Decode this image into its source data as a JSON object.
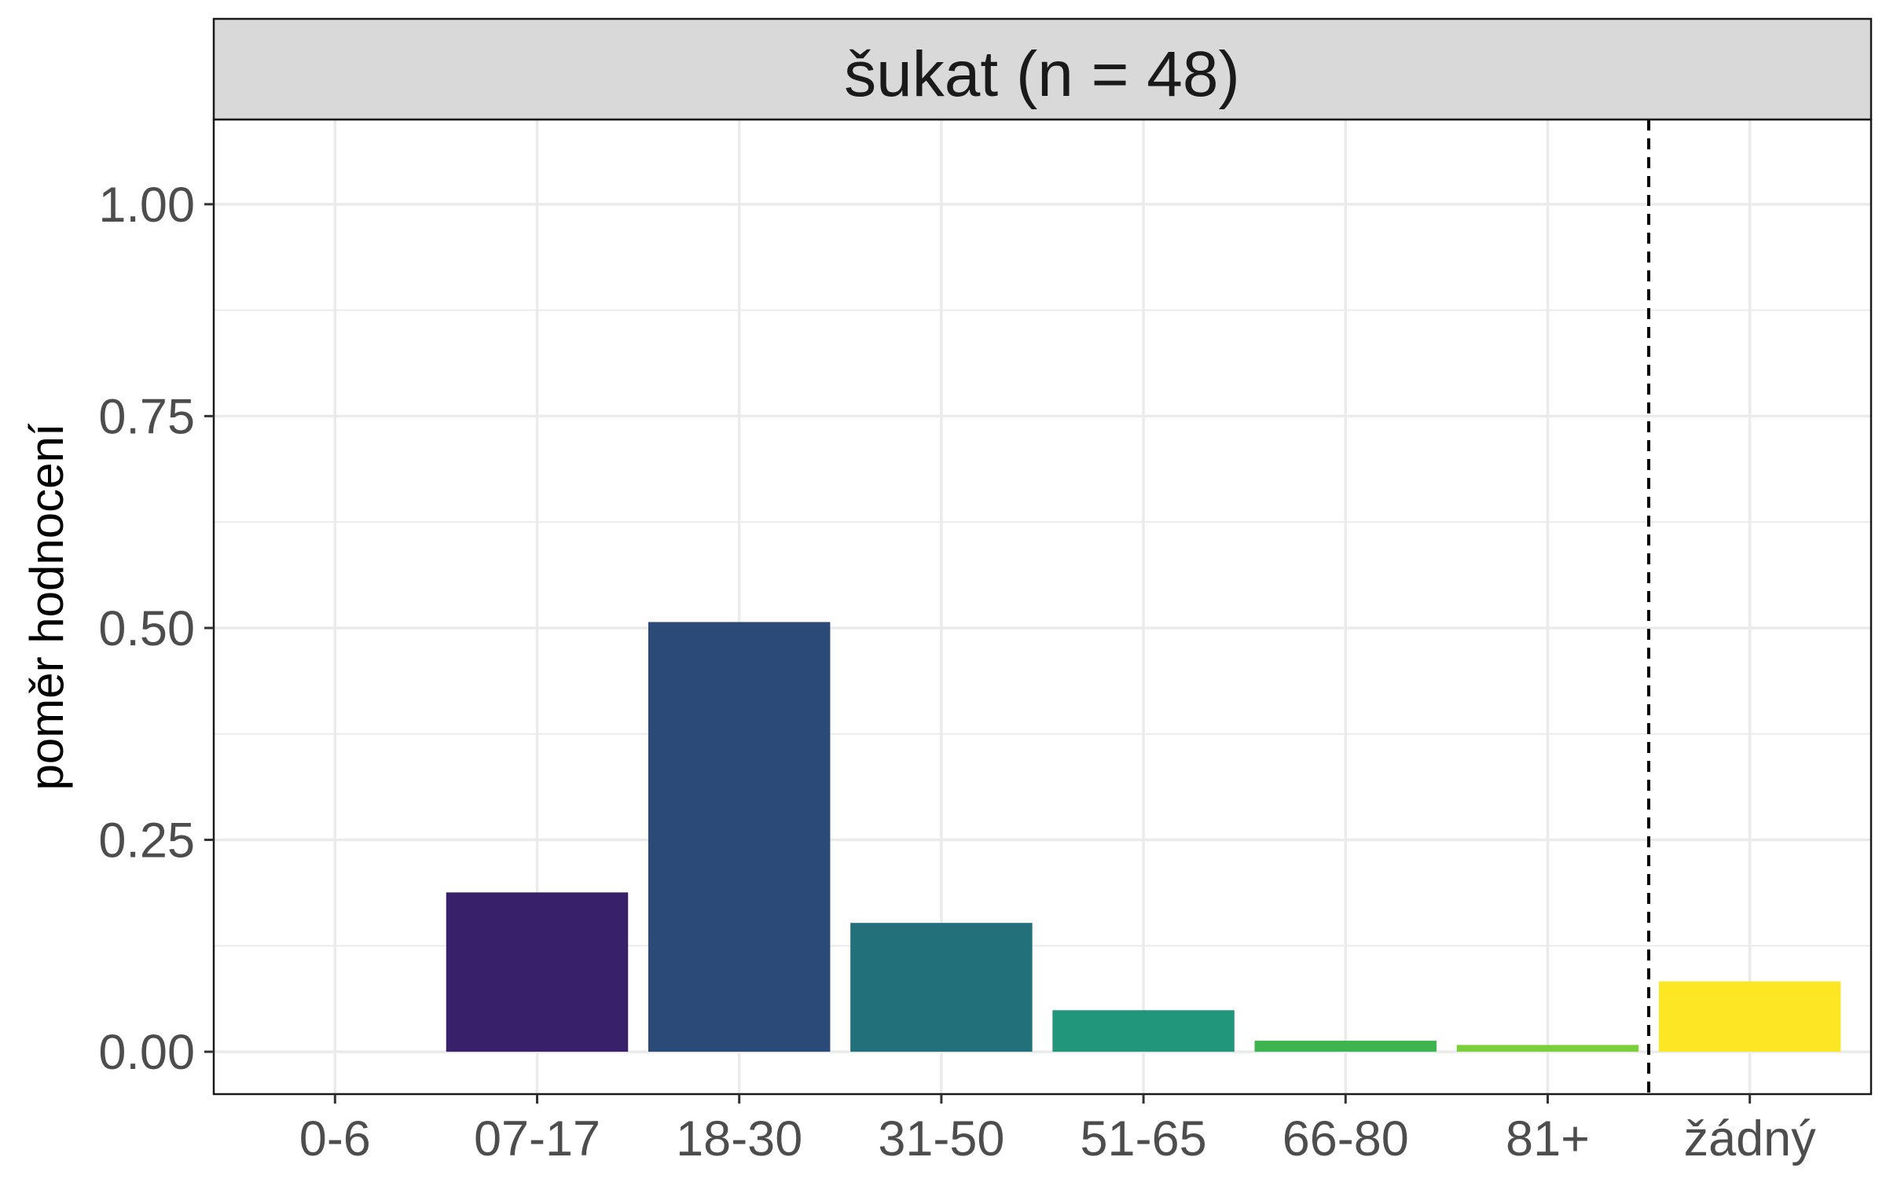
{
  "chart_data": {
    "type": "bar",
    "title": "šukat (n = 48)",
    "xlabel": "",
    "ylabel": "poměr hodnocení",
    "ylim": [
      -0.05,
      1.1
    ],
    "yticks": [
      "0.00",
      "0.25",
      "0.50",
      "0.75",
      "1.00"
    ],
    "ytick_values": [
      0,
      0.25,
      0.5,
      0.75,
      1.0
    ],
    "categories": [
      "0-6",
      "07-17",
      "18-30",
      "31-50",
      "51-65",
      "66-80",
      "81+",
      "žádný"
    ],
    "values": [
      0.0,
      0.188,
      0.507,
      0.152,
      0.049,
      0.013,
      0.008,
      0.083
    ],
    "colors": [
      "#440154",
      "#39206B",
      "#2C4A78",
      "#21707A",
      "#21967A",
      "#3DB44F",
      "#7ACF3A",
      "#FDE725"
    ],
    "separator": "dashed vertical line between 81+ and žádný",
    "grid": true,
    "legend": "none"
  }
}
